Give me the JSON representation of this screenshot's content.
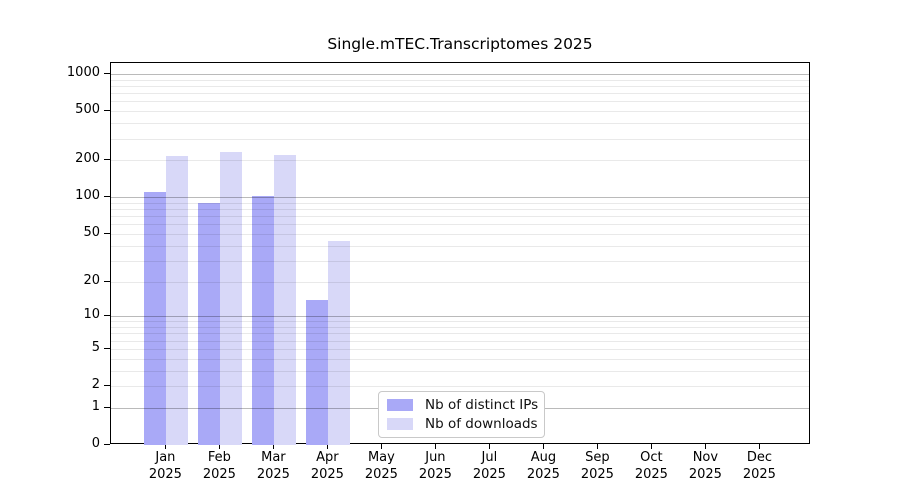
{
  "title": "Single.mTEC.Transcriptomes 2025",
  "legend": {
    "items": [
      {
        "label": "Nb of distinct IPs",
        "color": "#a9a9f7"
      },
      {
        "label": "Nb of downloads",
        "color": "#d8d8f8"
      }
    ]
  },
  "chart_data": {
    "type": "bar",
    "title": "Single.mTEC.Transcriptomes 2025",
    "categories": [
      "Jan",
      "Feb",
      "Mar",
      "Apr",
      "May",
      "Jun",
      "Jul",
      "Aug",
      "Sep",
      "Oct",
      "Nov",
      "Dec"
    ],
    "category_year": "2025",
    "series": [
      {
        "name": "Nb of distinct IPs",
        "color": "#a9a9f7",
        "values": [
          110,
          89,
          103,
          14,
          0,
          0,
          0,
          0,
          0,
          0,
          0,
          0
        ]
      },
      {
        "name": "Nb of downloads",
        "color": "#d8d8f8",
        "values": [
          215,
          235,
          222,
          44,
          0,
          0,
          0,
          0,
          0,
          0,
          0,
          0
        ]
      }
    ],
    "yticks": [
      0,
      1,
      2,
      5,
      10,
      20,
      50,
      100,
      200,
      500,
      1000
    ],
    "scale": "log1p",
    "ylim": [
      0,
      1228
    ],
    "xlabel": "",
    "ylabel": "",
    "grid": true,
    "legend_position": "inside-bottom-center"
  }
}
